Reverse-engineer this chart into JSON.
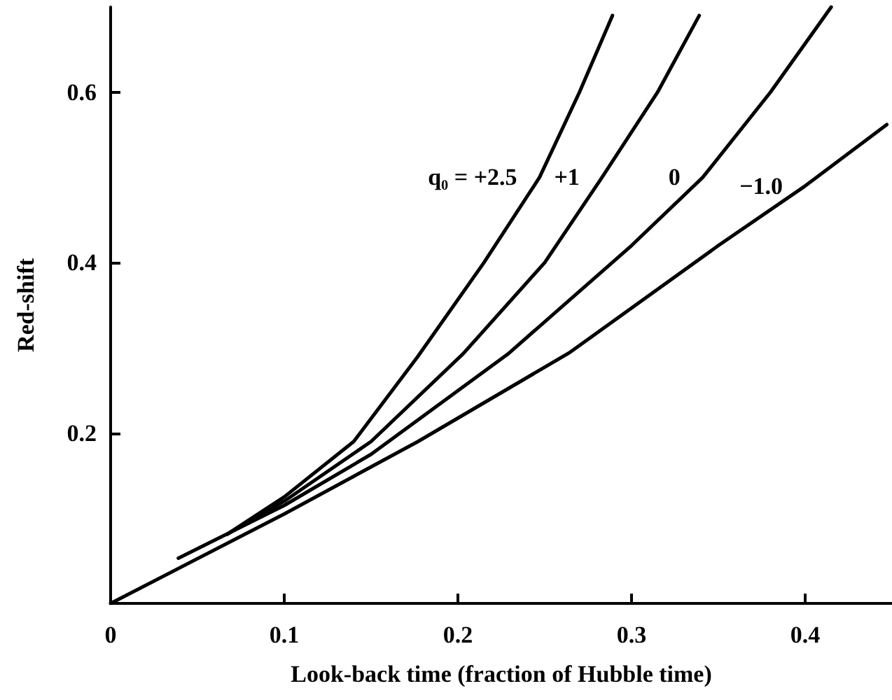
{
  "chart_data": {
    "type": "line",
    "xlabel": "Look-back time (fraction of Hubble time)",
    "ylabel": "Red-shift",
    "xlim": [
      0,
      0.45
    ],
    "ylim": [
      0,
      0.7
    ],
    "xticks": [
      0,
      0.1,
      0.2,
      0.3,
      0.4
    ],
    "yticks": [
      0.2,
      0.4,
      0.6
    ],
    "grid": false,
    "legend": false,
    "marker": "none",
    "line_style": "solid",
    "series": [
      {
        "name": "q₀ = +2.5",
        "color": "#000000",
        "x": [
          0.067,
          0.1,
          0.14,
          0.177,
          0.215,
          0.247,
          0.27,
          0.289
        ],
        "values": [
          0.081,
          0.125,
          0.19,
          0.29,
          0.4,
          0.5,
          0.6,
          0.69
        ]
      },
      {
        "name": "+1",
        "color": "#000000",
        "x": [
          0.067,
          0.1,
          0.15,
          0.203,
          0.25,
          0.283,
          0.315,
          0.339
        ],
        "values": [
          0.081,
          0.12,
          0.19,
          0.293,
          0.4,
          0.5,
          0.6,
          0.69
        ]
      },
      {
        "name": "0",
        "color": "#000000",
        "x": [
          0.039,
          0.1,
          0.15,
          0.229,
          0.3,
          0.341,
          0.38,
          0.415
        ],
        "values": [
          0.053,
          0.115,
          0.175,
          0.293,
          0.42,
          0.5,
          0.6,
          0.7
        ]
      },
      {
        "name": "−1.0",
        "color": "#000000",
        "x": [
          0,
          0.1,
          0.177,
          0.264,
          0.35,
          0.4,
          0.447
        ],
        "values": [
          0,
          0.105,
          0.19,
          0.294,
          0.42,
          0.49,
          0.562
        ]
      }
    ]
  }
}
